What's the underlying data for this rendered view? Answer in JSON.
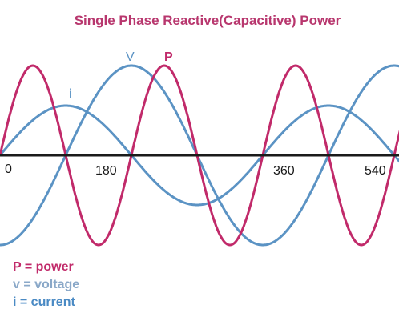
{
  "title": "Single Phase  Reactive(Capacitive) Power",
  "colors": {
    "title": "#b8376e",
    "power": "#c12a6a",
    "voltage": "#5b93c4",
    "current": "#5b93c4",
    "axis": "#1a1a1a",
    "legend_power": "#c12a6a",
    "legend_voltage": "#8aa8c8",
    "legend_current": "#4a8ac4"
  },
  "curve_labels": {
    "voltage": "V",
    "power": "P",
    "current": "i"
  },
  "x_ticks": [
    "0",
    "180",
    "360",
    "540"
  ],
  "legend": [
    {
      "text": "P = power",
      "key": "legend_power"
    },
    {
      "text": "v = voltage",
      "key": "legend_voltage"
    },
    {
      "text": "i = current",
      "key": "legend_current"
    }
  ]
}
